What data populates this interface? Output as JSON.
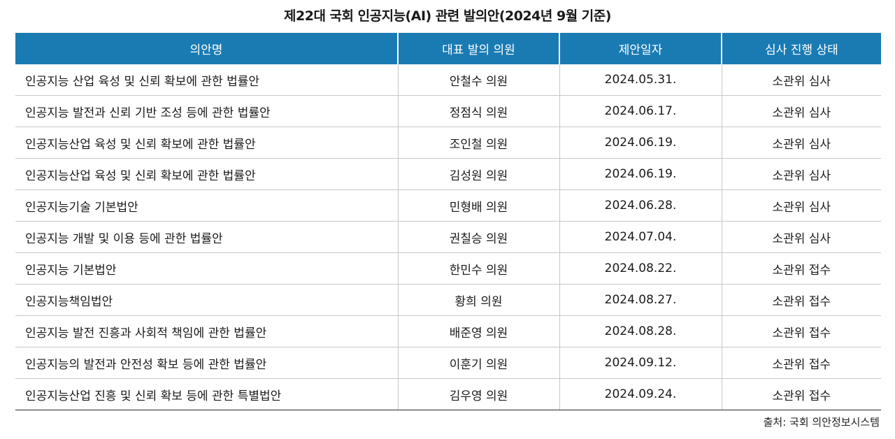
{
  "title": "제22대 국회 인공지능(AI) 관련 발의안(2024년 9월 기준)",
  "headers": [
    "의안명",
    "대표 발의 의원",
    "제안일자",
    "심사 진행 상태"
  ],
  "rows": [
    [
      "인공지능 산업 육성 및 신뢰 확보에 관한 법률안",
      "안철수 의원",
      "2024.05.31.",
      "소관위 심사"
    ],
    [
      "인공지능 발전과 신뢰 기반 조성 등에 관한 법률안",
      "정점식 의원",
      "2024.06.17.",
      "소관위 심사"
    ],
    [
      "인공지능산업 육성 및 신뢰 확보에 관한 법률안",
      "조인철 의원",
      "2024.06.19.",
      "소관위 심사"
    ],
    [
      "인공지능산업 육성 및 신뢰 확보에 관한 법률안",
      "김성원 의원",
      "2024.06.19.",
      "소관위 심사"
    ],
    [
      "인공지능기술 기본법안",
      "민형배 의원",
      "2024.06.28.",
      "소관위 심사"
    ],
    [
      "인공지능 개발 및 이용 등에 관한 법률안",
      "권칠승 의원",
      "2024.07.04.",
      "소관위 심사"
    ],
    [
      "인공지능 기본법안",
      "한민수 의원",
      "2024.08.22.",
      "소관위 접수"
    ],
    [
      "인공지능책임법안",
      "황희 의원",
      "2024.08.27.",
      "소관위 접수"
    ],
    [
      "인공지능 발전 진흥과 사회적 책임에 관한 법률안",
      "배준영 의원",
      "2024.08.28.",
      "소관위 접수"
    ],
    [
      "인공지능의 발전과 안전성 확보 등에 관한 법률안",
      "이훈기 의원",
      "2024.09.12.",
      "소관위 접수"
    ],
    [
      "인공지능산업 진흥 및 신뢰 확보 등에 관한 특별법안",
      "김우영 의원",
      "2024.09.24.",
      "소관위 접수"
    ]
  ],
  "source": "출처: 국회 의안정보시스템",
  "colors": {
    "header_bg": "#1a7bb3",
    "header_text": "#ffffff"
  }
}
